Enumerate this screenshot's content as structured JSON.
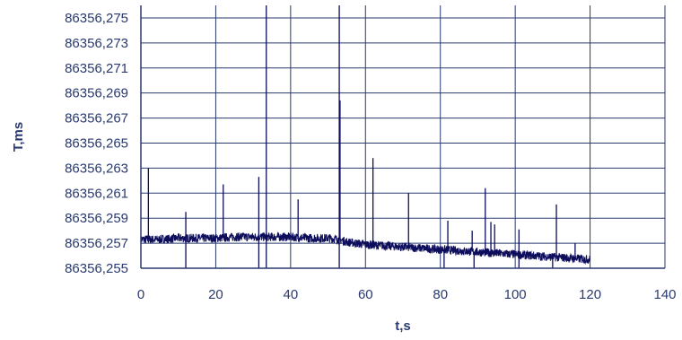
{
  "chart_data": {
    "type": "line",
    "title": "",
    "xlabel": "t,s",
    "ylabel": "T,ms",
    "xlim": [
      0,
      140
    ],
    "ylim": [
      86356.255,
      86356.276
    ],
    "x_ticks": [
      0,
      20,
      40,
      60,
      80,
      100,
      120,
      140
    ],
    "x_tick_labels": [
      "0",
      "20",
      "40",
      "60",
      "80",
      "100",
      "120",
      "140"
    ],
    "y_ticks": [
      86356.255,
      86356.257,
      86356.259,
      86356.261,
      86356.263,
      86356.265,
      86356.267,
      86356.269,
      86356.271,
      86356.273,
      86356.275
    ],
    "y_tick_labels": [
      "86356,255",
      "86356,257",
      "86356,259",
      "86356,261",
      "86356,263",
      "86356,265",
      "86356,267",
      "86356,269",
      "86356,271",
      "86356,273",
      "86356,275"
    ],
    "grid": true,
    "legend": "none",
    "colors": {
      "series": "#0d0d5c",
      "grid": "#2a3a6e",
      "text": "#2a3a6e"
    },
    "series": [
      {
        "x": [
          0,
          5,
          10,
          15,
          20,
          25,
          30,
          35,
          40,
          45,
          50,
          53,
          55,
          60,
          65,
          70,
          75,
          80,
          85,
          90,
          95,
          100,
          105,
          110,
          115,
          120
        ],
        "y": [
          86356.2573,
          86356.2573,
          86356.2574,
          86356.2574,
          86356.2574,
          86356.2575,
          86356.2575,
          86356.2575,
          86356.2575,
          86356.2574,
          86356.2574,
          86356.2573,
          86356.2571,
          86356.2569,
          86356.2568,
          86356.2567,
          86356.2566,
          86356.2565,
          86356.2564,
          86356.2563,
          86356.2562,
          86356.2561,
          86356.256,
          86356.2559,
          86356.2558,
          86356.2557
        ],
        "noise_band": 0.0007,
        "spikes": [
          {
            "x": 2,
            "y": 86356.263
          },
          {
            "x": 12,
            "y": 86356.2595
          },
          {
            "x": 22,
            "y": 86356.2617
          },
          {
            "x": 31.5,
            "y": 86356.2623
          },
          {
            "x": 33.5,
            "y": 86356.276
          },
          {
            "x": 42,
            "y": 86356.2605
          },
          {
            "x": 53,
            "y": 86356.276
          },
          {
            "x": 53.2,
            "y": 86356.2684
          },
          {
            "x": 62,
            "y": 86356.2638
          },
          {
            "x": 71.5,
            "y": 86356.261
          },
          {
            "x": 82,
            "y": 86356.2588
          },
          {
            "x": 88.5,
            "y": 86356.258
          },
          {
            "x": 92,
            "y": 86356.2614
          },
          {
            "x": 93.5,
            "y": 86356.2587
          },
          {
            "x": 94.5,
            "y": 86356.2585
          },
          {
            "x": 101,
            "y": 86356.2581
          },
          {
            "x": 111,
            "y": 86356.2601
          },
          {
            "x": 116,
            "y": 86356.257
          }
        ],
        "dips": [
          {
            "x": 12,
            "y": 86356.255
          },
          {
            "x": 31.5,
            "y": 86356.255
          },
          {
            "x": 33.5,
            "y": 86356.255
          },
          {
            "x": 53,
            "y": 86356.255
          },
          {
            "x": 81,
            "y": 86356.255
          },
          {
            "x": 89,
            "y": 86356.255
          },
          {
            "x": 101,
            "y": 86356.255
          },
          {
            "x": 110,
            "y": 86356.255
          }
        ]
      }
    ]
  }
}
